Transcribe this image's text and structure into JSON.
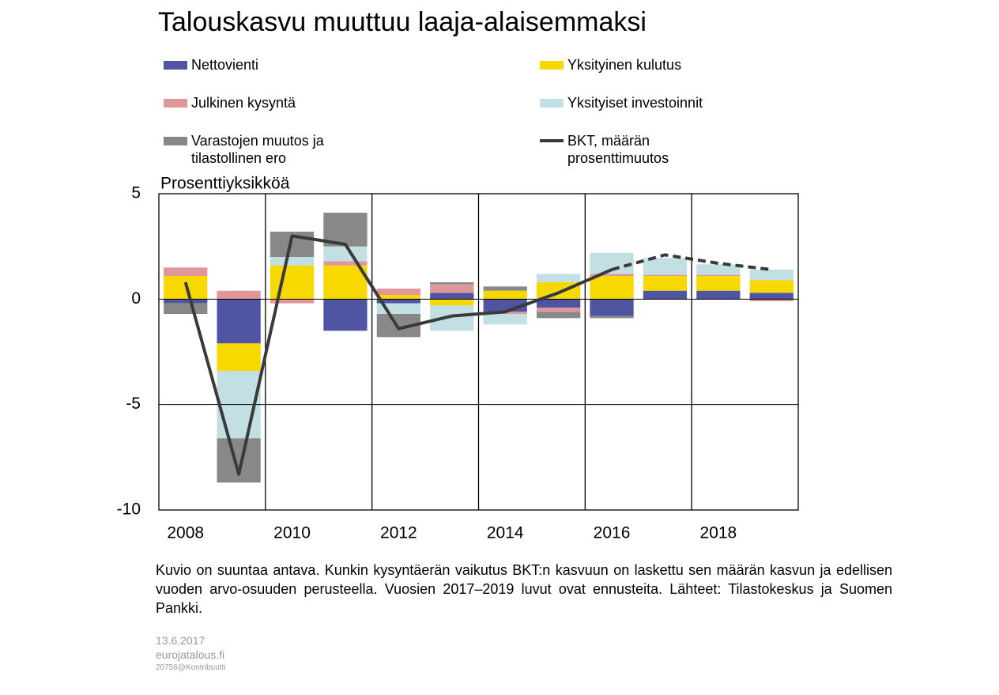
{
  "chart_data": {
    "type": "stacked_bar_line",
    "title": "Talouskasvu muuttuu laaja-alaisemmaksi",
    "y_label": "Prosenttiyksikköä",
    "categories": [
      "2008",
      null,
      "2010",
      null,
      "2012",
      null,
      "2014",
      null,
      "2016",
      null,
      "2018",
      null
    ],
    "series": [
      {
        "name": "Nettovienti",
        "color": "#4f55a3",
        "values": [
          -0.2,
          -2.1,
          0,
          -1.5,
          -0.2,
          0.3,
          -0.6,
          -0.4,
          -0.8,
          0.4,
          0.4,
          0.3
        ]
      },
      {
        "name": "Yksityinen kulutus",
        "color": "#f7d800",
        "values": [
          1.1,
          -1.3,
          1.6,
          1.6,
          0.2,
          -0.3,
          0.4,
          0.8,
          1.1,
          0.7,
          0.7,
          0.6
        ]
      },
      {
        "name": "Julkinen kysyntä",
        "color": "#e1969a",
        "values": [
          0.4,
          0.4,
          -0.2,
          0.2,
          0.3,
          0.4,
          -0.1,
          -0.2,
          0.1,
          0.05,
          0.05,
          -0.1
        ]
      },
      {
        "name": "Yksityiset investoinnit",
        "color": "#c2dfe3",
        "values": [
          0,
          -3.2,
          0.4,
          0.7,
          -0.5,
          -1.2,
          -0.5,
          0.4,
          1.0,
          0.8,
          0.5,
          0.5
        ]
      },
      {
        "name": "Varastojen muutos ja tilastollinen ero",
        "color": "#888888",
        "values": [
          -0.5,
          -2.1,
          1.2,
          1.6,
          -1.1,
          0.1,
          0.2,
          -0.3,
          -0.1,
          0,
          0,
          0
        ]
      },
      {
        "name": "BKT, määrän prosenttimuutos",
        "color": "#3a3a3a",
        "kind": "line",
        "values": [
          0.8,
          -8.3,
          3.0,
          2.6,
          -1.4,
          -0.8,
          -0.6,
          0.3,
          1.4,
          2.1,
          1.7,
          1.4
        ]
      }
    ],
    "dash_from": "2016",
    "ylim": [
      -10,
      5
    ],
    "yticks": [
      -10,
      -5,
      0,
      5
    ],
    "note": "Kuvio on suuntaa antava. Kunkin kysyntäerän vaikutus BKT:n kasvuun on laskettu sen määrän kasvun ja edellisen vuoden arvo-osuuden perusteella. Vuosien 2017–2019 luvut ovat ennusteita. Lähteet: Tilastokeskus ja Suomen Pankki.",
    "footer": [
      "13.6.2017",
      "eurojatalous.fi",
      "20756@Kontribuutti"
    ]
  }
}
